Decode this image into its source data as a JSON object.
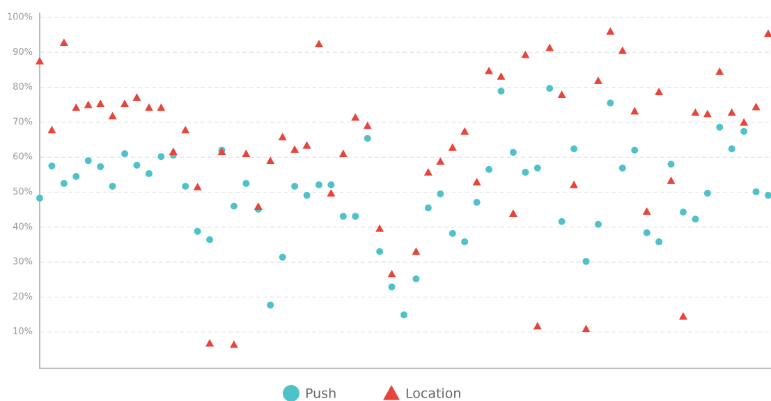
{
  "chart_data": {
    "type": "scatter",
    "categories": [
      null,
      null,
      null,
      null,
      null,
      null,
      null,
      null,
      null,
      null,
      null,
      null,
      null,
      null,
      null,
      null,
      null,
      null,
      null,
      null,
      null,
      null,
      null,
      null,
      null,
      null,
      null,
      null,
      null,
      null,
      null,
      null,
      null,
      null,
      null,
      null,
      null,
      null,
      null,
      null,
      null,
      null,
      null,
      null,
      null,
      null,
      null,
      null,
      null,
      null,
      null,
      null,
      null,
      null,
      null,
      null,
      null,
      null,
      null,
      null,
      null
    ],
    "series": [
      {
        "name": "Push",
        "color": "#4fc1c9",
        "marker": "circle",
        "values": [
          48.3,
          57.5,
          52.5,
          54.5,
          59,
          57.3,
          51.7,
          61,
          57.7,
          55.3,
          60.2,
          60.6,
          51.7,
          38.8,
          36.4,
          62,
          46,
          52.5,
          45.1,
          17.7,
          31.4,
          51.7,
          49.1,
          52.1,
          52.1,
          43.1,
          43.1,
          65.4,
          33,
          22.9,
          14.9,
          25.2,
          45.5,
          49.5,
          38.2,
          35.8,
          47.1,
          56.5,
          78.9,
          61.4,
          55.7,
          56.9,
          79.7,
          41.6,
          62.4,
          30.2,
          40.8,
          75.5,
          56.9,
          62,
          38.4,
          35.8,
          58,
          44.3,
          42.3,
          49.7,
          68.6,
          62.4,
          67.4,
          50.1,
          49.1
        ]
      },
      {
        "name": "Location",
        "color": "#e8443a",
        "marker": "triangle",
        "values": [
          87.5,
          67.8,
          92.8,
          74.2,
          75,
          75.3,
          71.8,
          75.3,
          77.1,
          74.2,
          74.2,
          61.6,
          67.8,
          51.5,
          6.8,
          61.6,
          6.4,
          61,
          45.9,
          59,
          65.8,
          62.2,
          63.4,
          92.4,
          49.7,
          61,
          71.4,
          69,
          39.6,
          26.6,
          null,
          33,
          55.7,
          58.8,
          62.8,
          67.4,
          52.9,
          84.7,
          83.1,
          43.9,
          89.3,
          11.7,
          91.3,
          77.9,
          52.1,
          10.9,
          81.9,
          96,
          90.5,
          73.2,
          44.5,
          78.7,
          53.3,
          14.5,
          72.8,
          72.4,
          84.5,
          72.8,
          70,
          74.4,
          95.4
        ]
      }
    ],
    "ylim": [
      0,
      100
    ],
    "yticks": [
      {
        "value": 10,
        "label": "10%"
      },
      {
        "value": 20,
        "label": "20%"
      },
      {
        "value": 30,
        "label": "30%"
      },
      {
        "value": 40,
        "label": "40%"
      },
      {
        "value": 50,
        "label": "50%"
      },
      {
        "value": 60,
        "label": "60%"
      },
      {
        "value": 70,
        "label": "70%"
      },
      {
        "value": 80,
        "label": "80%"
      },
      {
        "value": 90,
        "label": "90%"
      },
      {
        "value": 100,
        "label": "100%"
      }
    ],
    "grid": true,
    "legend": "bottom"
  }
}
